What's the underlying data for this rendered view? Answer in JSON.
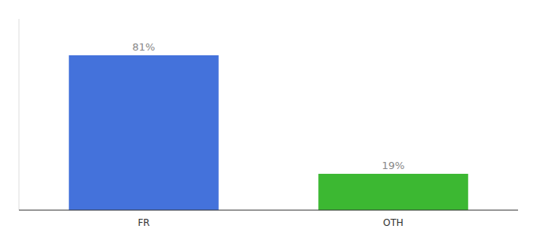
{
  "chart_data": {
    "type": "bar",
    "categories": [
      "FR",
      "OTH"
    ],
    "values": [
      81,
      19
    ],
    "value_labels": [
      "81%",
      "19%"
    ],
    "colors": [
      "#4472db",
      "#3cb832"
    ],
    "ylim": [
      0,
      100
    ],
    "data_labels": true,
    "tick_labels": "x"
  }
}
